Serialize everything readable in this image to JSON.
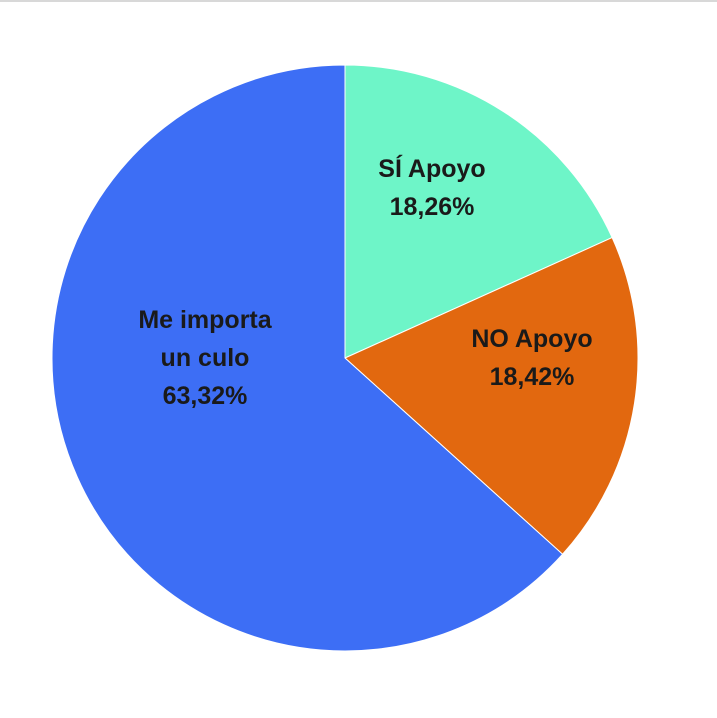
{
  "chart_data": {
    "type": "pie",
    "title": "",
    "slices": [
      {
        "name_lines": [
          "SÍ Apoyo"
        ],
        "value": 18.26,
        "value_label": "18,26%",
        "color": "#6ef5c8"
      },
      {
        "name_lines": [
          "NO Apoyo"
        ],
        "value": 18.42,
        "value_label": "18,42%",
        "color": "#e2680f"
      },
      {
        "name_lines": [
          "Me importa",
          "un culo"
        ],
        "value": 63.32,
        "value_label": "63,32%",
        "color": "#3d6ef5"
      }
    ],
    "start_direction": "top",
    "direction": "clockwise",
    "legend": "none",
    "labels_inside": true
  }
}
